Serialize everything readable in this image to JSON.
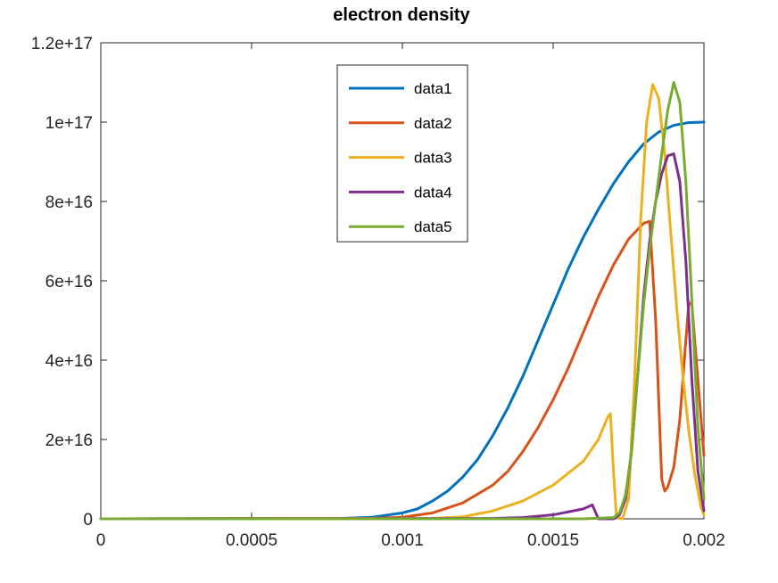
{
  "chart_data": {
    "type": "line",
    "title": "electron density",
    "xlabel": "",
    "ylabel": "",
    "xlim": [
      0,
      0.002
    ],
    "ylim": [
      0,
      1.2e+17
    ],
    "xticks": [
      0,
      0.0005,
      0.001,
      0.0015,
      0.002
    ],
    "xtick_labels": [
      "0",
      "0.0005",
      "0.001",
      "0.0015",
      "0.002"
    ],
    "yticks": [
      0,
      2e+16,
      4e+16,
      6e+16,
      8e+16,
      1e+17,
      1.2e+17
    ],
    "ytick_labels": [
      "0",
      "2e+16",
      "4e+16",
      "6e+16",
      "8e+16",
      "1e+17",
      "1.2e+17"
    ],
    "grid": false,
    "legend_location": "top-center",
    "series": [
      {
        "name": "data1",
        "color": "#0072BD",
        "points": [
          [
            0,
            0
          ],
          [
            0.0008,
            100000000000000.0
          ],
          [
            0.0009,
            400000000000000.0
          ],
          [
            0.001,
            1500000000000000.0
          ],
          [
            0.00105,
            2500000000000000.0
          ],
          [
            0.0011,
            4500000000000000.0
          ],
          [
            0.00115,
            7000000000000000.0
          ],
          [
            0.0012,
            1.05e+16
          ],
          [
            0.00125,
            1.5e+16
          ],
          [
            0.0013,
            2.1e+16
          ],
          [
            0.00135,
            2.8e+16
          ],
          [
            0.0014,
            3.6e+16
          ],
          [
            0.00145,
            4.5e+16
          ],
          [
            0.0015,
            5.4e+16
          ],
          [
            0.00155,
            6.3e+16
          ],
          [
            0.0016,
            7.1e+16
          ],
          [
            0.00165,
            7.8e+16
          ],
          [
            0.0017,
            8.45e+16
          ],
          [
            0.00175,
            9e+16
          ],
          [
            0.0018,
            9.45e+16
          ],
          [
            0.00185,
            9.75e+16
          ],
          [
            0.0019,
            9.92e+16
          ],
          [
            0.00195,
            9.99e+16
          ],
          [
            0.002,
            1e+17
          ]
        ]
      },
      {
        "name": "data2",
        "color": "#D95319",
        "points": [
          [
            0,
            0
          ],
          [
            0.0009,
            100000000000000.0
          ],
          [
            0.001,
            400000000000000.0
          ],
          [
            0.0011,
            1500000000000000.0
          ],
          [
            0.0012,
            4000000000000000.0
          ],
          [
            0.0013,
            8500000000000000.0
          ],
          [
            0.00135,
            1.2e+16
          ],
          [
            0.0014,
            1.7e+16
          ],
          [
            0.00145,
            2.3e+16
          ],
          [
            0.0015,
            3e+16
          ],
          [
            0.00155,
            3.8e+16
          ],
          [
            0.0016,
            4.7e+16
          ],
          [
            0.00165,
            5.6e+16
          ],
          [
            0.0017,
            6.4e+16
          ],
          [
            0.00175,
            7.05e+16
          ],
          [
            0.0018,
            7.45e+16
          ],
          [
            0.00182,
            7.5e+16
          ],
          [
            0.00184,
            5e+16
          ],
          [
            0.00186,
            1e+16
          ],
          [
            0.00187,
            7000000000000000.0
          ],
          [
            0.00188,
            8000000000000000.0
          ],
          [
            0.0019,
            1.3e+16
          ],
          [
            0.00192,
            2.5e+16
          ],
          [
            0.00194,
            4.5e+16
          ],
          [
            0.00195,
            5.45e+16
          ],
          [
            0.00196,
            5.4e+16
          ],
          [
            0.00198,
            3.5e+16
          ],
          [
            0.002,
            1.6e+16
          ]
        ]
      },
      {
        "name": "data3",
        "color": "#EDB120",
        "points": [
          [
            0,
            0
          ],
          [
            0.0011,
            100000000000000.0
          ],
          [
            0.0012,
            500000000000000.0
          ],
          [
            0.0013,
            2000000000000000.0
          ],
          [
            0.0014,
            4500000000000000.0
          ],
          [
            0.0015,
            8500000000000000.0
          ],
          [
            0.0016,
            1.45e+16
          ],
          [
            0.00165,
            2e+16
          ],
          [
            0.00168,
            2.55e+16
          ],
          [
            0.00169,
            2.65e+16
          ],
          [
            0.0017,
            1.2e+16
          ],
          [
            0.00171,
            300000000000000.0
          ],
          [
            0.00173,
            0
          ],
          [
            0.00175,
            5000000000000000.0
          ],
          [
            0.00177,
            3.5e+16
          ],
          [
            0.00179,
            7.5e+16
          ],
          [
            0.00181,
            1e+17
          ],
          [
            0.00183,
            1.095e+17
          ],
          [
            0.00185,
            1.06e+17
          ],
          [
            0.00187,
            9.2e+16
          ],
          [
            0.00189,
            7.2e+16
          ],
          [
            0.00191,
            5.3e+16
          ],
          [
            0.00193,
            3.6e+16
          ],
          [
            0.00195,
            2.2e+16
          ],
          [
            0.00197,
            1.1e+16
          ],
          [
            0.00199,
            3000000000000000.0
          ],
          [
            0.002,
            1000000000000000.0
          ]
        ]
      },
      {
        "name": "data4",
        "color": "#7E2F8E",
        "points": [
          [
            0,
            0
          ],
          [
            0.0013,
            100000000000000.0
          ],
          [
            0.0014,
            300000000000000.0
          ],
          [
            0.0015,
            1000000000000000.0
          ],
          [
            0.0016,
            2500000000000000.0
          ],
          [
            0.00163,
            3500000000000000.0
          ],
          [
            0.00165,
            0
          ],
          [
            0.0017,
            0
          ],
          [
            0.00172,
            1000000000000000.0
          ],
          [
            0.00174,
            5000000000000000.0
          ],
          [
            0.00176,
            1.7e+16
          ],
          [
            0.00178,
            3.6e+16
          ],
          [
            0.0018,
            5.6e+16
          ],
          [
            0.00182,
            7e+16
          ],
          [
            0.00184,
            8e+16
          ],
          [
            0.00186,
            8.7e+16
          ],
          [
            0.00188,
            9.15e+16
          ],
          [
            0.0019,
            9.2e+16
          ],
          [
            0.00192,
            8.5e+16
          ],
          [
            0.00194,
            6.5e+16
          ],
          [
            0.00196,
            3.5e+16
          ],
          [
            0.00198,
            1.2e+16
          ],
          [
            0.002,
            2000000000000000.0
          ]
        ]
      },
      {
        "name": "data5",
        "color": "#77AC30",
        "points": [
          [
            0,
            0
          ],
          [
            0.0016,
            0
          ],
          [
            0.0017,
            300000000000000.0
          ],
          [
            0.00172,
            1500000000000000.0
          ],
          [
            0.00174,
            6000000000000000.0
          ],
          [
            0.00176,
            1.7e+16
          ],
          [
            0.00178,
            3.6e+16
          ],
          [
            0.0018,
            5.4e+16
          ],
          [
            0.00182,
            6.8e+16
          ],
          [
            0.00184,
            8e+16
          ],
          [
            0.00186,
            9.2e+16
          ],
          [
            0.00188,
            1.03e+17
          ],
          [
            0.0019,
            1.1e+17
          ],
          [
            0.00192,
            1.05e+17
          ],
          [
            0.00194,
            8.5e+16
          ],
          [
            0.00196,
            5.5e+16
          ],
          [
            0.00198,
            2.3e+16
          ],
          [
            0.002,
            5000000000000000.0
          ]
        ]
      }
    ]
  }
}
